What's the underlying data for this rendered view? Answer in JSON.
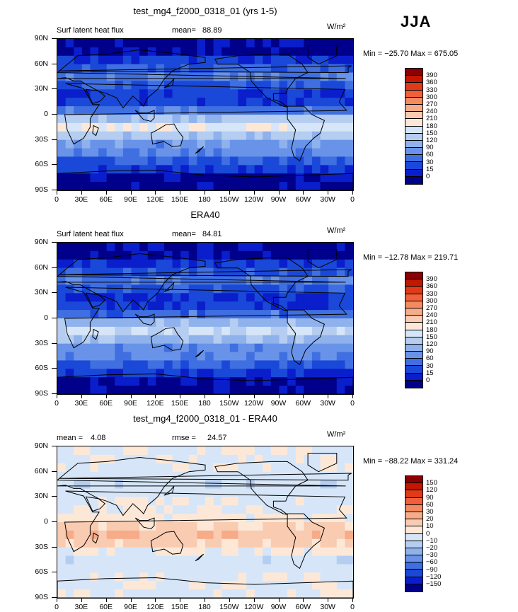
{
  "header": {
    "season": "JJA"
  },
  "panels": [
    {
      "title": "test_mg4_f2000_0318_01 (yrs 1-5)",
      "left_label": "Surf latent heat flux",
      "stat1_label": "mean=",
      "stat1_value": "88.89",
      "stat2_label": "",
      "stat2_value": "",
      "units": "W/m²",
      "minmax": "Min = −25.70 Max = 675.05",
      "colorbar_labels": [
        "390",
        "360",
        "330",
        "300",
        "270",
        "240",
        "210",
        "180",
        "150",
        "120",
        "90",
        "60",
        "30",
        "15",
        "0"
      ],
      "colorbar_colors": [
        "#8b0000",
        "#c21800",
        "#e03a1a",
        "#f0603a",
        "#f48a60",
        "#f7ab88",
        "#f9cbb0",
        "#fde8d8",
        "#d6e6f8",
        "#b4cdf0",
        "#8fb1ec",
        "#6893e8",
        "#3f6fe0",
        "#1a48d8",
        "#0a1ecc",
        "#00008b"
      ]
    },
    {
      "title": "ERA40",
      "left_label": "Surf latent heat flux",
      "stat1_label": "mean=",
      "stat1_value": "84.81",
      "stat2_label": "",
      "stat2_value": "",
      "units": "W/m²",
      "minmax": "Min = −12.78 Max = 219.71",
      "colorbar_labels": [
        "390",
        "360",
        "330",
        "300",
        "270",
        "240",
        "210",
        "180",
        "150",
        "120",
        "90",
        "60",
        "30",
        "15",
        "0"
      ],
      "colorbar_colors": [
        "#8b0000",
        "#c21800",
        "#e03a1a",
        "#f0603a",
        "#f48a60",
        "#f7ab88",
        "#f9cbb0",
        "#fde8d8",
        "#d6e6f8",
        "#b4cdf0",
        "#8fb1ec",
        "#6893e8",
        "#3f6fe0",
        "#1a48d8",
        "#0a1ecc",
        "#00008b"
      ]
    },
    {
      "title": "test_mg4_f2000_0318_01 - ERA40",
      "left_label": "",
      "stat1_label": "mean =",
      "stat1_value": "4.08",
      "stat2_label": "rmse =",
      "stat2_value": "24.57",
      "units": "W/m²",
      "minmax": "Min = −88.22 Max = 331.24",
      "colorbar_labels": [
        "150",
        "120",
        "90",
        "60",
        "30",
        "20",
        "10",
        "0",
        "−10",
        "−20",
        "−30",
        "−60",
        "−90",
        "−120",
        "−150"
      ],
      "colorbar_colors": [
        "#8b0000",
        "#c21800",
        "#e03a1a",
        "#f0603a",
        "#f48a60",
        "#f7ab88",
        "#f9cbb0",
        "#fde8d8",
        "#d6e6f8",
        "#b4cdf0",
        "#8fb1ec",
        "#6893e8",
        "#3f6fe0",
        "#1a48d8",
        "#0a1ecc",
        "#00008b"
      ]
    }
  ],
  "axes": {
    "lat_labels": [
      "90N",
      "60N",
      "30N",
      "0",
      "30S",
      "60S",
      "90S"
    ],
    "lon_labels": [
      "0",
      "30E",
      "60E",
      "90E",
      "120E",
      "150E",
      "180",
      "150W",
      "120W",
      "90W",
      "60W",
      "30W",
      "0"
    ]
  },
  "chart_data": [
    {
      "type": "heatmap",
      "title": "test_mg4_f2000_0318_01 (yrs 1-5)",
      "variable": "Surf latent heat flux",
      "units": "W/m2",
      "mean": 88.89,
      "min": -25.7,
      "max": 675.05,
      "levels": [
        0,
        15,
        30,
        60,
        90,
        120,
        150,
        180,
        210,
        240,
        270,
        300,
        330,
        360,
        390
      ],
      "lat_range": [
        -90,
        90
      ],
      "lon_range": [
        0,
        360
      ]
    },
    {
      "type": "heatmap",
      "title": "ERA40",
      "variable": "Surf latent heat flux",
      "units": "W/m2",
      "mean": 84.81,
      "min": -12.78,
      "max": 219.71,
      "levels": [
        0,
        15,
        30,
        60,
        90,
        120,
        150,
        180,
        210,
        240,
        270,
        300,
        330,
        360,
        390
      ],
      "lat_range": [
        -90,
        90
      ],
      "lon_range": [
        0,
        360
      ]
    },
    {
      "type": "heatmap",
      "title": "test_mg4_f2000_0318_01 - ERA40",
      "units": "W/m2",
      "mean": 4.08,
      "rmse": 24.57,
      "min": -88.22,
      "max": 331.24,
      "levels": [
        -150,
        -120,
        -90,
        -60,
        -30,
        -20,
        -10,
        0,
        10,
        20,
        30,
        60,
        90,
        120,
        150
      ],
      "lat_range": [
        -90,
        90
      ],
      "lon_range": [
        0,
        360
      ]
    }
  ]
}
